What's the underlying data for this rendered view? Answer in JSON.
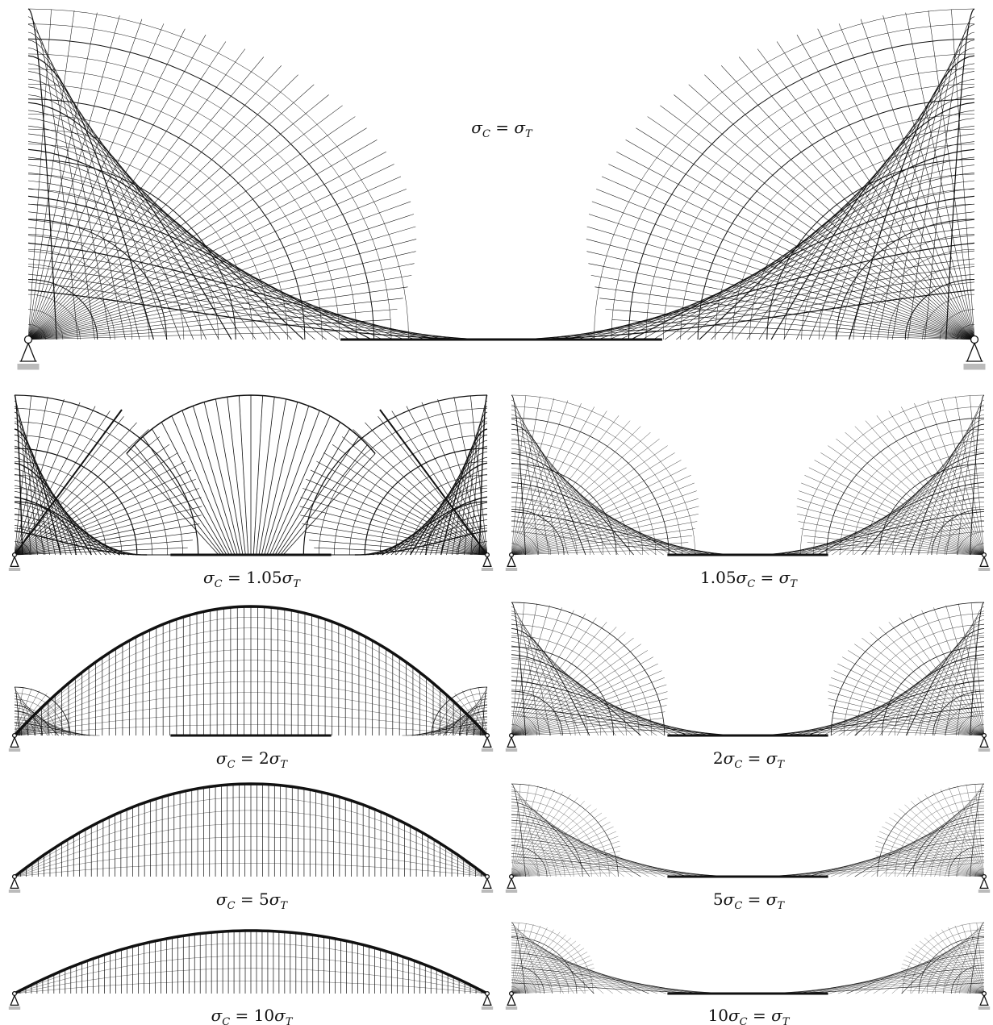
{
  "figure": {
    "panels": [
      {
        "id": "main",
        "label_parts": [
          "σ",
          "C",
          " = ",
          "σ",
          "T"
        ]
      },
      {
        "id": "c105",
        "label_parts": [
          "σ",
          "C",
          " = 1.05",
          "σ",
          "T"
        ]
      },
      {
        "id": "t105",
        "label_parts": [
          "1.05",
          "σ",
          "C",
          " = ",
          "σ",
          "T"
        ]
      },
      {
        "id": "c2",
        "label_parts": [
          "σ",
          "C",
          " = 2",
          "σ",
          "T"
        ]
      },
      {
        "id": "t2",
        "label_parts": [
          "2",
          "σ",
          "C",
          " = ",
          "σ",
          "T"
        ]
      },
      {
        "id": "c5",
        "label_parts": [
          "σ",
          "C",
          " = 5",
          "σ",
          "T"
        ]
      },
      {
        "id": "t5",
        "label_parts": [
          "5",
          "σ",
          "C",
          " = ",
          "σ",
          "T"
        ]
      },
      {
        "id": "c10",
        "label_parts": [
          "σ",
          "C",
          " = 10",
          "σ",
          "T"
        ]
      },
      {
        "id": "t10",
        "label_parts": [
          "10",
          "σ",
          "C",
          " = ",
          "σ",
          "T"
        ]
      }
    ],
    "labels": {
      "main": "σC = σT",
      "c105": "σC = 1.05σT",
      "t105": "1.05σC = σT",
      "c2": "σC = 2σT",
      "t2": "2σC = σT",
      "c5": "σC = 5σT",
      "t5": "5σC = σT",
      "c10": "σC = 10σT",
      "t10": "10σC = σT"
    },
    "line_color": "#111111",
    "support_color": "#bbbbbb"
  }
}
